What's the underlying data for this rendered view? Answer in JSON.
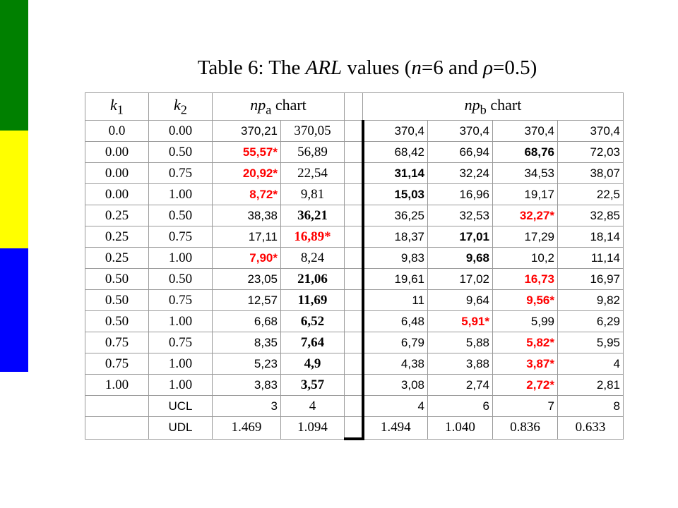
{
  "title": [
    "Table 6: The ",
    "ARL",
    " values (",
    "n",
    "=6 and ",
    "ρ",
    "=0.5)"
  ],
  "table": {
    "header": {
      "k1": [
        "k",
        "1"
      ],
      "k2": [
        "k",
        "2"
      ],
      "npa": [
        "np",
        "a",
        "chart"
      ],
      "npb": [
        "np",
        "b",
        "chart"
      ]
    },
    "rows": [
      [
        "0.0",
        "0.00",
        "370,21",
        "370,05",
        "370,4",
        "370,4",
        "370,4",
        "370,4"
      ],
      [
        "0.00",
        "0.50",
        "55,57*",
        "56,89",
        "68,42",
        "66,94",
        "68,76",
        "72,03"
      ],
      [
        "0.00",
        "0.75",
        "20,92*",
        "22,54",
        "31,14",
        "32,24",
        "34,53",
        "38,07"
      ],
      [
        "0.00",
        "1.00",
        "8,72*",
        "9,81",
        "15,03",
        "16,96",
        "19,17",
        "22,5"
      ],
      [
        "0.25",
        "0.50",
        "38,38",
        "36,21",
        "36,25",
        "32,53",
        "32,27*",
        "32,85"
      ],
      [
        "0.25",
        "0.75",
        "17,11",
        "16,89*",
        "18,37",
        "17,01",
        "17,29",
        "18,14"
      ],
      [
        "0.25",
        "1.00",
        "7,90*",
        "8,24",
        "9,83",
        "9,68",
        "10,2",
        "11,14"
      ],
      [
        "0.50",
        "0.50",
        "23,05",
        "21,06",
        "19,61",
        "17,02",
        "16,73",
        "16,97"
      ],
      [
        "0.50",
        "0.75",
        "12,57",
        "11,69",
        "11",
        "9,64",
        "9,56*",
        "9,82"
      ],
      [
        "0.50",
        "1.00",
        "6,68",
        "6,52",
        "6,48",
        "5,91*",
        "5,99",
        "6,29"
      ],
      [
        "0.75",
        "0.75",
        "8,35",
        "7,64",
        "6,79",
        "5,88",
        "5,82*",
        "5,95"
      ],
      [
        "0.75",
        "1.00",
        "5,23",
        "4,9",
        "4,38",
        "3,88",
        "3,87*",
        "4"
      ],
      [
        "1.00",
        "1.00",
        "3,83",
        "3,57",
        "3,08",
        "2,74",
        "2,72*",
        "2,81"
      ],
      [
        null,
        "UCL",
        "3",
        "4",
        "4",
        "6",
        "7",
        "8"
      ],
      [
        null,
        "UDL",
        "1.469",
        "1.094",
        "1.494",
        "1.040",
        "0.836",
        "0.633"
      ]
    ]
  }
}
